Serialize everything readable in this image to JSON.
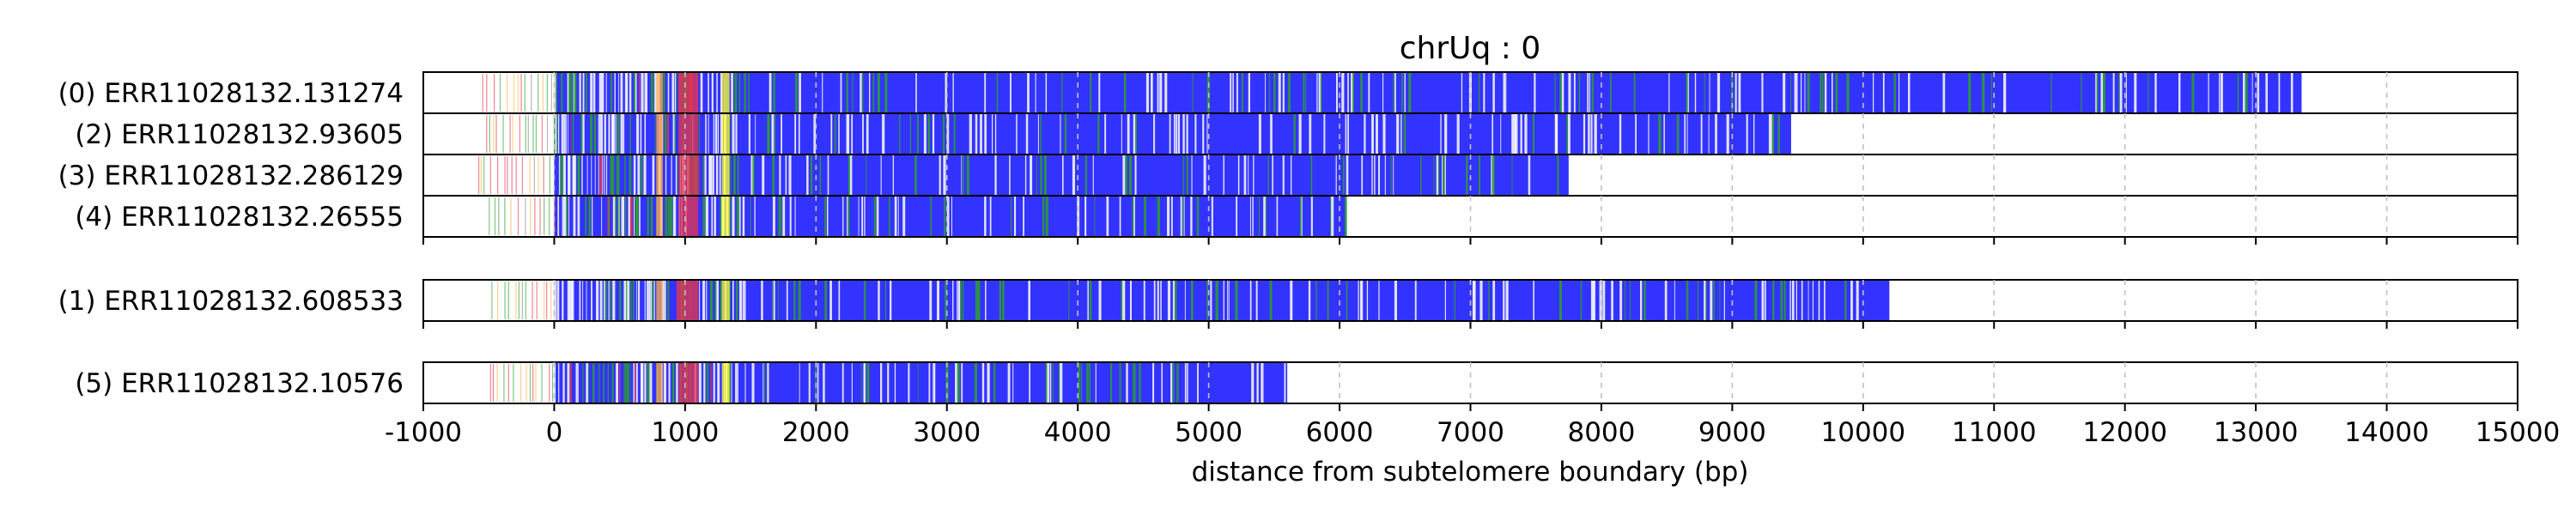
{
  "chart_data": {
    "type": "bar",
    "title": "chrUq : 0",
    "xlabel": "distance from subtelomere boundary (bp)",
    "ylabel": "",
    "xlim": [
      -1000,
      15000
    ],
    "xticks": [
      -1000,
      0,
      1000,
      2000,
      3000,
      4000,
      5000,
      6000,
      7000,
      8000,
      9000,
      10000,
      11000,
      12000,
      13000,
      14000,
      15000
    ],
    "grid": "vertical dashed",
    "colors": {
      "read_fill": "#3333ff",
      "variant_white": "#ffffff",
      "variant_green": "#2ca02c",
      "variant_red": "#e8354a",
      "variant_yellow": "#ffff33",
      "variant_orange": "#ffb347",
      "grid": "#c0c0c0"
    },
    "groups": [
      {
        "reads": [
          {
            "label": "(0) ERR11028132.131274",
            "start": 0,
            "end": 13350,
            "prefix_start": -550
          },
          {
            "label": "(2) ERR11028132.93605",
            "start": 0,
            "end": 9450,
            "prefix_start": -520
          },
          {
            "label": "(3) ERR11028132.286129",
            "start": 0,
            "end": 7750,
            "prefix_start": -580
          },
          {
            "label": "(4) ERR11028132.26555",
            "start": 0,
            "end": 6050,
            "prefix_start": -500
          }
        ]
      },
      {
        "reads": [
          {
            "label": "(1) ERR11028132.608533",
            "start": 0,
            "end": 10200,
            "prefix_start": -480
          }
        ]
      },
      {
        "reads": [
          {
            "label": "(5) ERR11028132.10576",
            "start": 0,
            "end": 5600,
            "prefix_start": -490
          }
        ]
      }
    ]
  }
}
